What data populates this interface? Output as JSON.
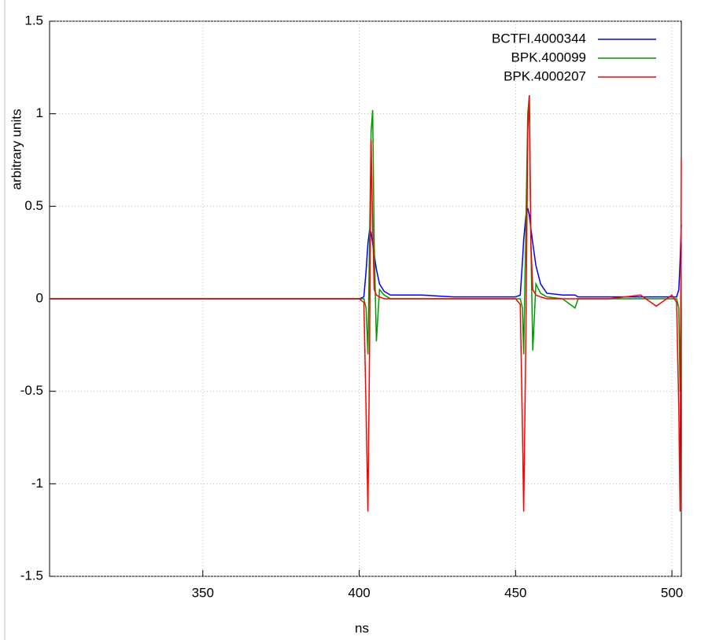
{
  "chart_data": {
    "type": "line",
    "xlabel": "ns",
    "ylabel": "arbitrary units",
    "x": [
      301,
      310,
      320,
      330,
      340,
      350,
      360,
      370,
      380,
      390,
      400,
      401.5,
      402.2,
      402.8,
      403.3,
      403.8,
      404.3,
      404.8,
      405.5,
      406.5,
      408,
      410,
      415,
      420,
      430,
      440,
      450,
      451.5,
      452.2,
      452.6,
      453.3,
      453.9,
      454.4,
      454.9,
      455.5,
      456.5,
      458,
      460,
      465,
      469,
      470,
      480,
      490,
      495,
      500,
      501.5,
      502.2,
      502.6,
      503
    ],
    "series": [
      {
        "name": "BCTFI.4000344",
        "color": "#0000ff",
        "values": [
          0,
          0,
          0,
          0,
          0,
          0,
          0,
          0,
          0,
          0,
          0,
          0.01,
          0.15,
          0.3,
          0.37,
          0.36,
          0.3,
          0.24,
          0.16,
          0.08,
          0.04,
          0.02,
          0.02,
          0.02,
          0.01,
          0.01,
          0.01,
          0.02,
          0.2,
          0.32,
          0.45,
          0.49,
          0.45,
          0.38,
          0.3,
          0.18,
          0.08,
          0.03,
          0.02,
          0.02,
          0.01,
          0.01,
          0.01,
          0.01,
          0.01,
          0.01,
          0.05,
          0.2,
          0.4
        ]
      },
      {
        "name": "BPK.400099",
        "color": "#009900",
        "values": [
          0,
          0,
          0,
          0,
          0,
          0,
          0,
          0,
          0,
          0,
          0,
          0,
          -0.05,
          -0.3,
          0.3,
          0.9,
          1.02,
          0.3,
          -0.23,
          0.05,
          0.02,
          0,
          0,
          0,
          0,
          0,
          0,
          0,
          -0.05,
          -0.3,
          0.4,
          1.0,
          1.1,
          0.3,
          -0.28,
          0.08,
          0.03,
          0.01,
          0,
          -0.05,
          0,
          0,
          0,
          0,
          0,
          0,
          -0.05,
          -0.5,
          0.3
        ]
      },
      {
        "name": "BPK.4000207",
        "color": "#ff0000",
        "values": [
          0,
          0,
          0,
          0,
          0,
          0,
          0,
          0,
          0,
          0,
          0,
          -0.02,
          -0.6,
          -1.15,
          -0.3,
          0.86,
          0.4,
          0.05,
          0.02,
          0.01,
          0,
          0,
          0,
          0,
          0,
          0,
          0,
          -0.03,
          -0.7,
          -1.15,
          -0.2,
          0.9,
          1.1,
          0.3,
          0.05,
          0.02,
          0.01,
          0,
          0,
          0,
          0,
          0,
          0.02,
          -0.04,
          0.02,
          -0.02,
          -0.6,
          -1.15,
          0.76
        ]
      }
    ],
    "xlim": [
      301,
      503
    ],
    "ylim": [
      -1.5,
      1.5
    ],
    "xticks": [
      350,
      400,
      450,
      500
    ],
    "yticks": [
      -1.5,
      -1,
      -0.5,
      0,
      0.5,
      1,
      1.5
    ],
    "grid": true,
    "legend": "top-right"
  }
}
